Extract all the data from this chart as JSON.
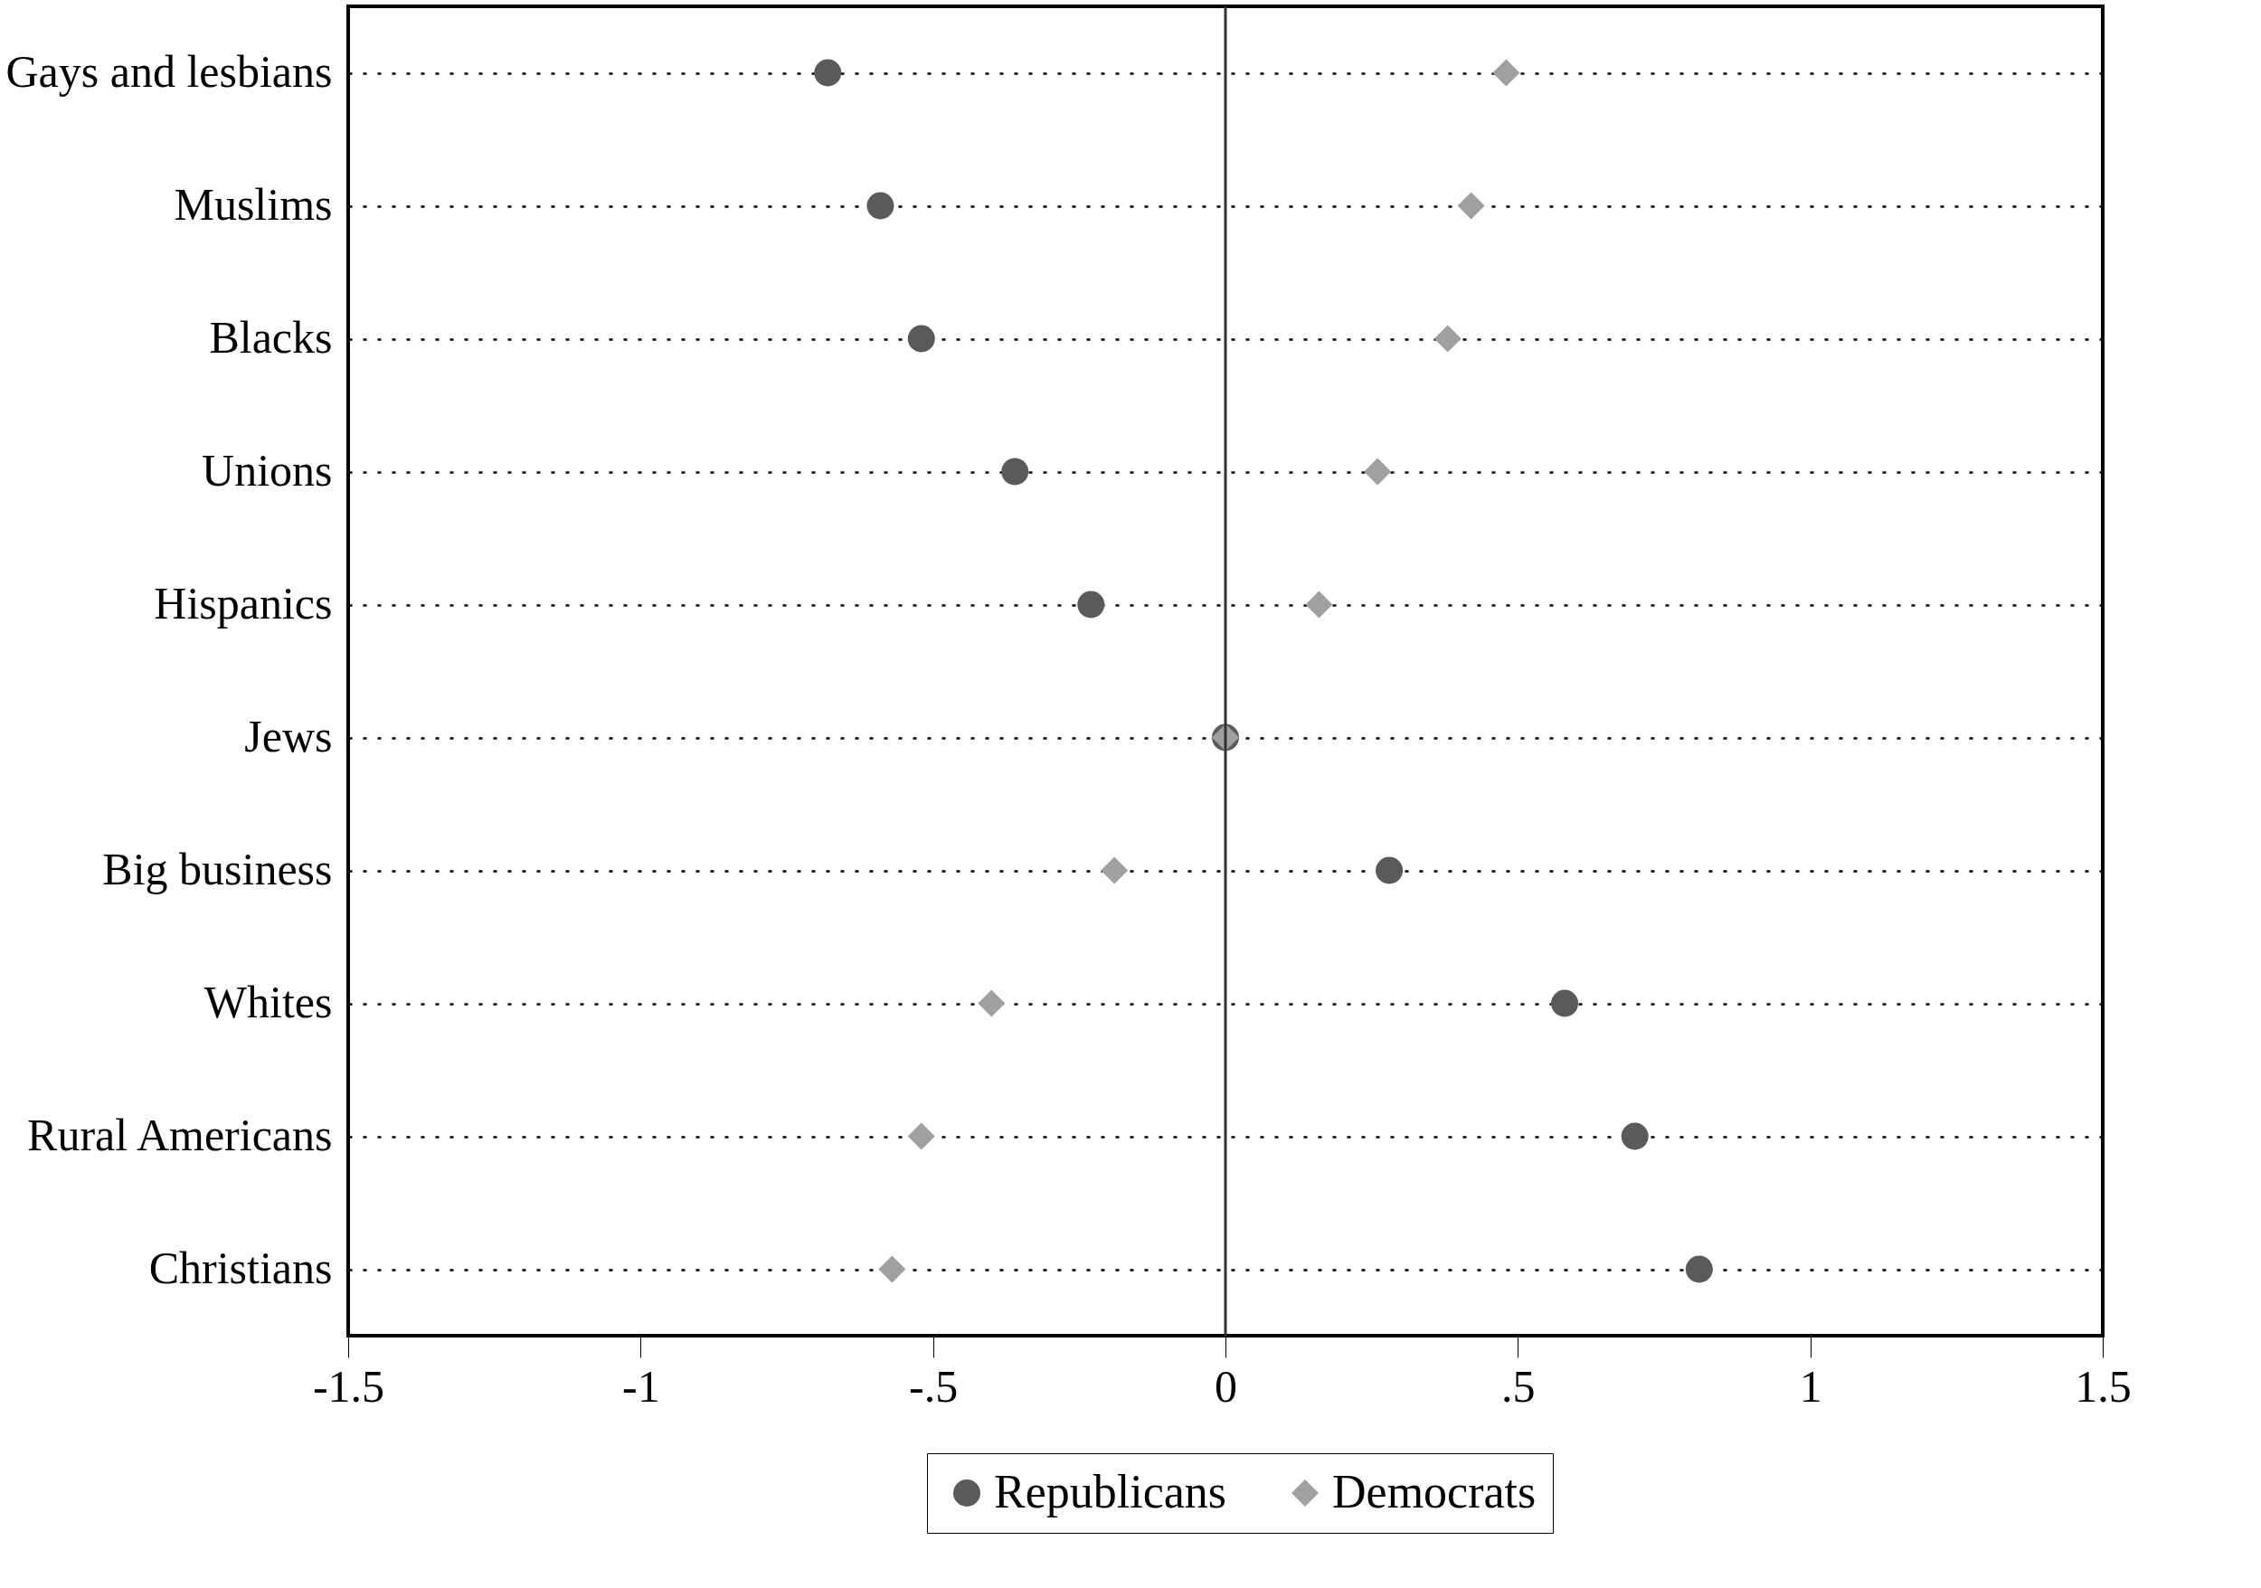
{
  "chart_data": {
    "type": "scatter",
    "categories": [
      "Gays and lesbians",
      "Muslims",
      "Blacks",
      "Unions",
      "Hispanics",
      "Jews",
      "Big business",
      "Whites",
      "Rural Americans",
      "Christians"
    ],
    "series": [
      {
        "name": "Republicans",
        "color": "#5a5a5a",
        "marker": "circle",
        "values": [
          -0.68,
          -0.59,
          -0.52,
          -0.36,
          -0.23,
          0.0,
          0.28,
          0.58,
          0.7,
          0.81
        ]
      },
      {
        "name": "Democrats",
        "color": "#a0a0a0",
        "marker": "diamond",
        "values": [
          0.48,
          0.42,
          0.38,
          0.26,
          0.16,
          0.0,
          -0.19,
          -0.4,
          -0.52,
          -0.57
        ]
      }
    ],
    "xlim": [
      -1.5,
      1.5
    ],
    "xticks": [
      {
        "value": -1.5,
        "label": "-1.5"
      },
      {
        "value": -1,
        "label": "-1"
      },
      {
        "value": -0.5,
        "label": "-.5"
      },
      {
        "value": 0,
        "label": "0"
      },
      {
        "value": 0.5,
        "label": ".5"
      },
      {
        "value": 1,
        "label": "1"
      },
      {
        "value": 1.5,
        "label": "1.5"
      }
    ],
    "grid": "y",
    "legend": "bottom",
    "orientation": "horizontal",
    "ref_lines": [
      {
        "axis": "x",
        "value": 0,
        "color": "#333333"
      }
    ]
  }
}
